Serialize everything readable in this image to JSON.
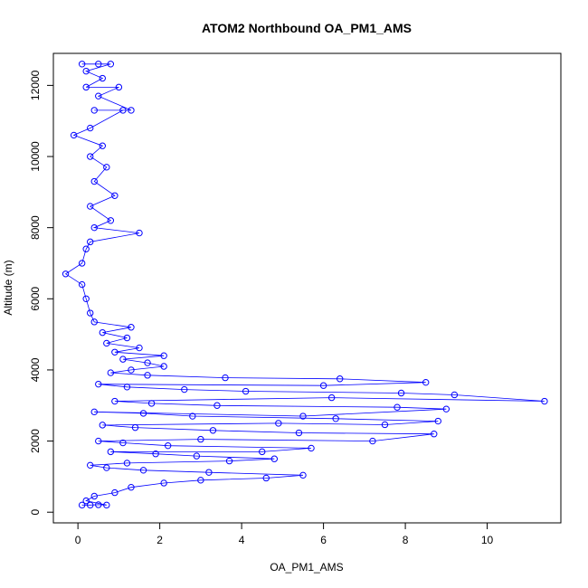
{
  "chart_data": {
    "type": "line",
    "title": "ATOM2 Northbound OA_PM1_AMS",
    "xlabel": "OA_PM1_AMS",
    "ylabel": "Altitude (m)",
    "xlim": [
      -0.6,
      11.8
    ],
    "ylim": [
      -300,
      12900
    ],
    "x_ticks": [
      0,
      2,
      4,
      6,
      8,
      10
    ],
    "y_ticks": [
      0,
      2000,
      4000,
      6000,
      8000,
      10000,
      12000
    ],
    "series_color": "#0000ff",
    "marker": "open-circle",
    "grid": false,
    "series": [
      {
        "points": [
          [
            0.1,
            200
          ],
          [
            0.3,
            200
          ],
          [
            0.5,
            210
          ],
          [
            0.7,
            200
          ],
          [
            0.2,
            320
          ],
          [
            0.4,
            450
          ],
          [
            0.9,
            550
          ],
          [
            1.3,
            700
          ],
          [
            2.1,
            820
          ],
          [
            3.0,
            900
          ],
          [
            4.6,
            960
          ],
          [
            5.5,
            1040
          ],
          [
            3.2,
            1120
          ],
          [
            1.6,
            1180
          ],
          [
            0.7,
            1250
          ],
          [
            0.3,
            1320
          ],
          [
            1.2,
            1380
          ],
          [
            3.7,
            1440
          ],
          [
            4.8,
            1500
          ],
          [
            2.9,
            1580
          ],
          [
            1.9,
            1640
          ],
          [
            0.8,
            1700
          ],
          [
            4.5,
            1700
          ],
          [
            5.7,
            1800
          ],
          [
            2.2,
            1870
          ],
          [
            1.1,
            1950
          ],
          [
            0.5,
            2000
          ],
          [
            3.0,
            2050
          ],
          [
            7.2,
            2000
          ],
          [
            8.7,
            2200
          ],
          [
            5.4,
            2230
          ],
          [
            3.3,
            2300
          ],
          [
            1.4,
            2380
          ],
          [
            0.6,
            2450
          ],
          [
            4.9,
            2500
          ],
          [
            7.5,
            2460
          ],
          [
            8.8,
            2560
          ],
          [
            6.3,
            2630
          ],
          [
            2.8,
            2700
          ],
          [
            1.6,
            2780
          ],
          [
            0.4,
            2820
          ],
          [
            5.5,
            2700
          ],
          [
            9.0,
            2900
          ],
          [
            7.8,
            2950
          ],
          [
            3.4,
            3000
          ],
          [
            1.8,
            3060
          ],
          [
            0.9,
            3120
          ],
          [
            6.2,
            3220
          ],
          [
            11.4,
            3120
          ],
          [
            9.2,
            3300
          ],
          [
            7.9,
            3350
          ],
          [
            4.1,
            3400
          ],
          [
            2.6,
            3450
          ],
          [
            1.2,
            3520
          ],
          [
            0.5,
            3600
          ],
          [
            6.0,
            3560
          ],
          [
            8.5,
            3650
          ],
          [
            6.4,
            3750
          ],
          [
            3.6,
            3780
          ],
          [
            1.7,
            3850
          ],
          [
            0.8,
            3920
          ],
          [
            1.3,
            4000
          ],
          [
            2.1,
            4100
          ],
          [
            1.7,
            4200
          ],
          [
            1.1,
            4300
          ],
          [
            2.1,
            4400
          ],
          [
            0.9,
            4500
          ],
          [
            1.5,
            4620
          ],
          [
            0.7,
            4750
          ],
          [
            1.2,
            4900
          ],
          [
            0.6,
            5050
          ],
          [
            1.3,
            5200
          ],
          [
            0.4,
            5350
          ],
          [
            0.3,
            5600
          ],
          [
            0.2,
            6000
          ],
          [
            0.1,
            6400
          ],
          [
            -0.3,
            6700
          ],
          [
            0.1,
            7000
          ],
          [
            0.2,
            7400
          ],
          [
            0.3,
            7600
          ],
          [
            1.5,
            7850
          ],
          [
            0.4,
            8000
          ],
          [
            0.8,
            8200
          ],
          [
            0.3,
            8600
          ],
          [
            0.9,
            8900
          ],
          [
            0.4,
            9300
          ],
          [
            0.7,
            9700
          ],
          [
            0.3,
            10000
          ],
          [
            0.6,
            10300
          ],
          [
            -0.1,
            10600
          ],
          [
            0.3,
            10800
          ],
          [
            1.1,
            11300
          ],
          [
            0.4,
            11300
          ],
          [
            1.3,
            11300
          ],
          [
            0.5,
            11700
          ],
          [
            1.0,
            11950
          ],
          [
            0.2,
            11950
          ],
          [
            0.6,
            12200
          ],
          [
            0.2,
            12400
          ],
          [
            0.8,
            12600
          ],
          [
            0.1,
            12600
          ],
          [
            0.5,
            12600
          ]
        ]
      }
    ]
  }
}
